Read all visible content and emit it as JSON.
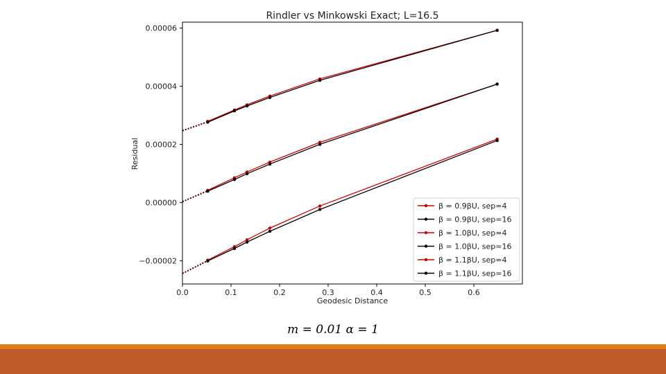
{
  "chart_data": {
    "type": "line",
    "title": "Rindler vs Minkowski Exact; L=16.5",
    "xlabel": "Geodesic Distance",
    "ylabel": "Residual",
    "xlim": [
      0.0,
      0.7
    ],
    "ylim": [
      -2.8e-05,
      6.2e-05
    ],
    "xticks": [
      0.0,
      0.1,
      0.2,
      0.3,
      0.4,
      0.5,
      0.6
    ],
    "xtick_labels": [
      "0.0",
      "0.1",
      "0.2",
      "0.3",
      "0.4",
      "0.5",
      "0.6"
    ],
    "yticks": [
      -2e-05,
      0.0,
      2e-05,
      4e-05,
      6e-05
    ],
    "ytick_labels": [
      "−0.00002",
      "0.00000",
      "0.00002",
      "0.00004",
      "0.00006"
    ],
    "grid": false,
    "legend_position": "lower-right",
    "series": [
      {
        "name": "β = 0.9βU, sep=4",
        "color": "#cc0000",
        "x": [
          0.0,
          0.052,
          0.107,
          0.133,
          0.18,
          0.283,
          0.648
        ],
        "y": [
          2.48e-05,
          2.79e-05,
          3.18e-05,
          3.36e-05,
          3.66e-05,
          4.25e-05,
          5.92e-05
        ]
      },
      {
        "name": "β = 0.9βU, sep=16",
        "color": "#000000",
        "x": [
          0.0,
          0.052,
          0.107,
          0.133,
          0.18,
          0.283,
          0.648
        ],
        "y": [
          2.46e-05,
          2.76e-05,
          3.15e-05,
          3.32e-05,
          3.61e-05,
          4.2e-05,
          5.92e-05
        ]
      },
      {
        "name": "β = 1.0βU, sep=4",
        "color": "#cc0000",
        "x": [
          0.0,
          0.052,
          0.107,
          0.133,
          0.18,
          0.283,
          0.648
        ],
        "y": [
          4e-07,
          4.2e-06,
          8.5e-06,
          1.05e-05,
          1.39e-05,
          2.07e-05,
          4.07e-05
        ]
      },
      {
        "name": "β = 1.0βU, sep=16",
        "color": "#000000",
        "x": [
          0.0,
          0.052,
          0.107,
          0.133,
          0.18,
          0.283,
          0.648
        ],
        "y": [
          2e-07,
          3.9e-06,
          7.9e-06,
          9.9e-06,
          1.32e-05,
          2e-05,
          4.07e-05
        ]
      },
      {
        "name": "β = 1.1βU, sep=4",
        "color": "#cc0000",
        "x": [
          0.0,
          0.052,
          0.107,
          0.133,
          0.18,
          0.283,
          0.648
        ],
        "y": [
          -2.43e-05,
          -1.98e-05,
          -1.52e-05,
          -1.28e-05,
          -8.8e-06,
          -1.2e-06,
          2.18e-05
        ]
      },
      {
        "name": "β = 1.1βU, sep=16",
        "color": "#000000",
        "x": [
          0.0,
          0.052,
          0.107,
          0.133,
          0.18,
          0.283,
          0.648
        ],
        "y": [
          -2.45e-05,
          -2.01e-05,
          -1.58e-05,
          -1.36e-05,
          -9.9e-06,
          -2.4e-06,
          2.13e-05
        ]
      }
    ]
  },
  "caption": "m = 0.01   α = 1",
  "theme": {
    "accent_thin": "#e07e1c",
    "accent_main": "#bf5a2a"
  }
}
